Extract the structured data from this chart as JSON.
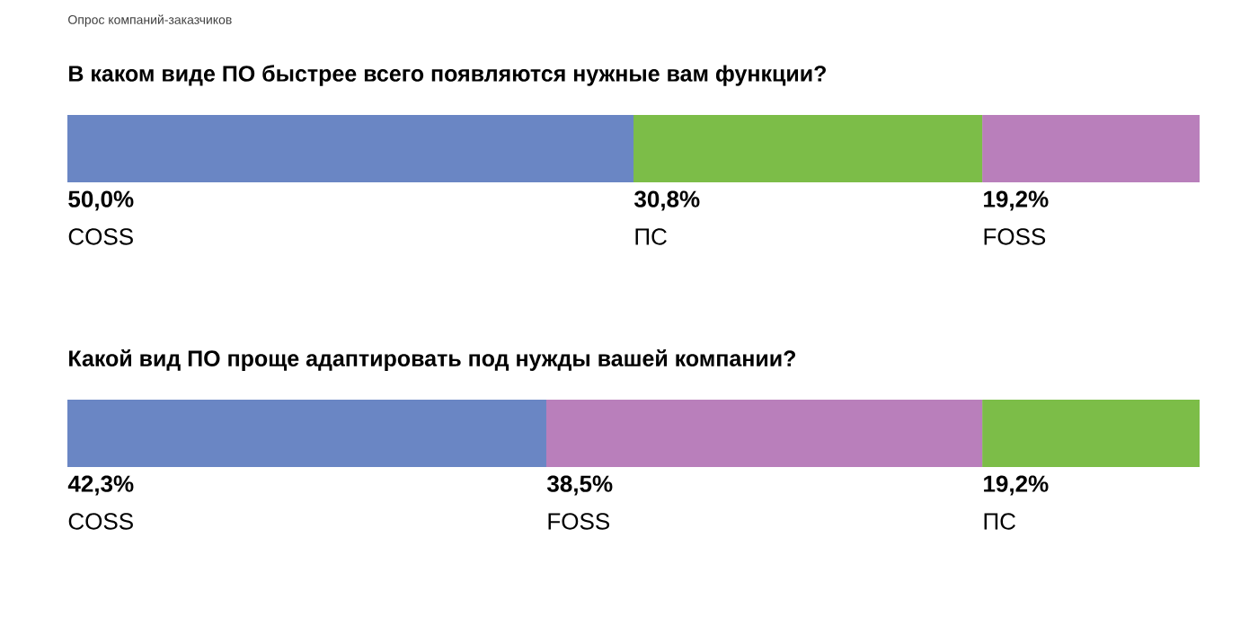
{
  "chart_data": [
    {
      "type": "bar",
      "orientation": "horizontal",
      "stacked": true,
      "subtitle": "Опрос компаний-заказчиков",
      "title": "В каком виде ПО быстрее всего появляются нужные вам функции?",
      "categories": [
        null
      ],
      "tick_labels": false,
      "series": [
        {
          "name": "COSS",
          "color": "#6a86c4",
          "values": [
            50.0
          ],
          "value_labels": [
            "50,0%"
          ]
        },
        {
          "name": "ПС",
          "color": "#7cbd48",
          "values": [
            30.8
          ],
          "value_labels": [
            "30,8%"
          ]
        },
        {
          "name": "FOSS",
          "color": "#b97fbb",
          "values": [
            19.2
          ],
          "value_labels": [
            "19,2%"
          ]
        }
      ]
    },
    {
      "type": "bar",
      "orientation": "horizontal",
      "stacked": true,
      "title": "Какой вид ПО проще адаптировать под нужды вашей компании?",
      "categories": [
        null
      ],
      "tick_labels": false,
      "series": [
        {
          "name": "COSS",
          "color": "#6a86c4",
          "values": [
            42.3
          ],
          "value_labels": [
            "42,3%"
          ]
        },
        {
          "name": "FOSS",
          "color": "#b97fbb",
          "values": [
            38.5
          ],
          "value_labels": [
            "38,5%"
          ]
        },
        {
          "name": "ПС",
          "color": "#7cbd48",
          "values": [
            19.2
          ],
          "value_labels": [
            "19,2%"
          ]
        }
      ]
    }
  ]
}
